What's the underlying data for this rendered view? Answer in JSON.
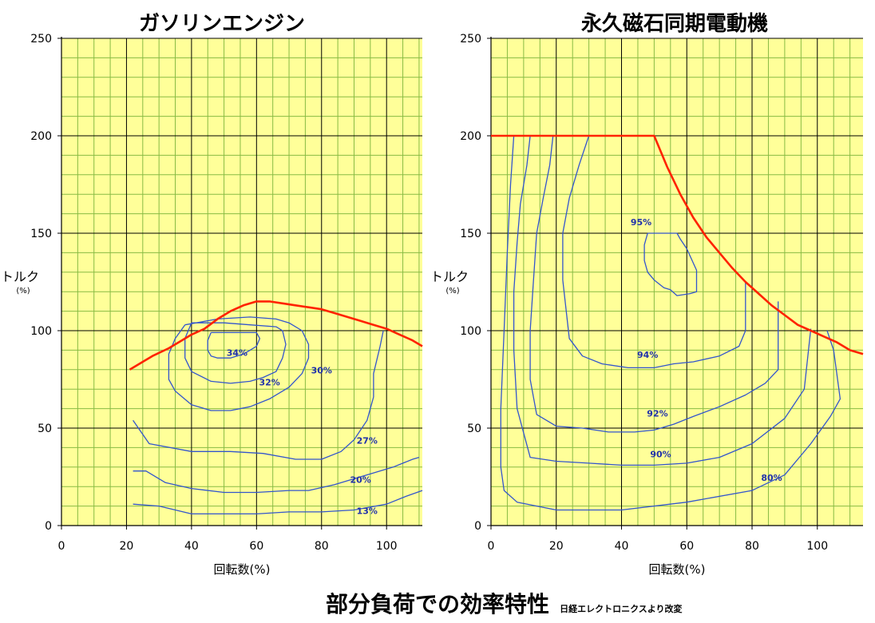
{
  "figure_caption": "部分負荷での効率特性",
  "figure_source": "日経エレクトロニクスより改変",
  "colors": {
    "plot_background": "#FFFF99",
    "minor_grid": "#88BB44",
    "major_grid": "#000000",
    "contour": "#3355CC",
    "contour_label": "#2233AA",
    "limit_curve": "#FF2200"
  },
  "chart_data": [
    {
      "type": "line",
      "title": "ガソリンエンジン",
      "xlabel": "回転数(%)",
      "ylabel": "トルク",
      "ylabel_unit": "(%)",
      "xlim": [
        0,
        111
      ],
      "ylim": [
        0,
        250
      ],
      "xticks": [
        0,
        20,
        40,
        60,
        80,
        100
      ],
      "yticks": [
        0,
        50,
        100,
        150,
        200,
        250
      ],
      "grid": true,
      "max_torque_curve": {
        "x": [
          21,
          25,
          28,
          33,
          37,
          40,
          44,
          48,
          52,
          56,
          60,
          64,
          68,
          72,
          76,
          80,
          84,
          88,
          92,
          96,
          100,
          104,
          108,
          111
        ],
        "y": [
          80,
          84,
          87,
          91,
          95,
          98,
          101,
          106,
          110,
          113,
          115,
          115,
          114,
          113,
          112,
          111,
          109,
          107,
          105,
          103,
          101,
          98,
          95,
          92
        ]
      },
      "contours": [
        {
          "label": "34%",
          "label_at": [
            54,
            87
          ],
          "x": [
            46,
            60,
            61,
            60,
            58,
            56,
            52,
            48,
            46,
            45,
            45,
            46
          ],
          "y": [
            99,
            99,
            96,
            92,
            90,
            88,
            86,
            86,
            87,
            90,
            95,
            99
          ]
        },
        {
          "label": "32%",
          "label_at": [
            64,
            72
          ],
          "x": [
            40,
            50,
            58,
            66,
            68,
            69,
            68,
            66,
            62,
            58,
            52,
            46,
            40,
            38,
            38,
            40
          ],
          "y": [
            104,
            104,
            103,
            102,
            100,
            93,
            86,
            79,
            76,
            74,
            73,
            74,
            79,
            86,
            96,
            104
          ]
        },
        {
          "label": "30%",
          "label_at": [
            80,
            78
          ],
          "x": [
            38,
            48,
            58,
            66,
            70,
            74,
            76,
            76,
            74,
            70,
            64,
            58,
            52,
            46,
            40,
            35,
            33,
            33,
            35,
            38
          ],
          "y": [
            103,
            106,
            107,
            106,
            104,
            100,
            93,
            86,
            78,
            71,
            65,
            61,
            59,
            59,
            62,
            69,
            75,
            88,
            96,
            103
          ]
        },
        {
          "label": "27%",
          "label_at": [
            94,
            42
          ],
          "x": [
            22,
            27,
            40,
            52,
            62,
            72,
            80,
            86,
            90,
            94,
            96,
            96,
            98,
            99
          ],
          "y": [
            54,
            42,
            38,
            38,
            37,
            34,
            34,
            38,
            44,
            54,
            66,
            78,
            92,
            100
          ]
        },
        {
          "label": "20%",
          "label_at": [
            92,
            22
          ],
          "x": [
            22,
            26,
            32,
            40,
            50,
            60,
            70,
            76,
            84,
            90,
            96,
            102,
            108,
            110
          ],
          "y": [
            28,
            28,
            22,
            19,
            17,
            17,
            18,
            18,
            21,
            24,
            27,
            30,
            34,
            35
          ]
        },
        {
          "label": "13%",
          "label_at": [
            94,
            6
          ],
          "x": [
            22,
            30,
            40,
            50,
            60,
            70,
            80,
            90,
            100,
            106,
            111
          ],
          "y": [
            11,
            10,
            6,
            6,
            6,
            7,
            7,
            8,
            11,
            15,
            18
          ]
        }
      ]
    },
    {
      "type": "line",
      "title": "永久磁石同期電動機",
      "xlabel": "回転数(%)",
      "ylabel": "トルク",
      "ylabel_unit": "(%)",
      "xlim": [
        0,
        114
      ],
      "ylim": [
        0,
        250
      ],
      "xticks": [
        0,
        20,
        40,
        60,
        80,
        100
      ],
      "yticks": [
        0,
        50,
        100,
        150,
        200,
        250
      ],
      "grid": true,
      "max_torque_curve": {
        "x": [
          0,
          10,
          20,
          30,
          40,
          50,
          54,
          58,
          62,
          66,
          70,
          74,
          78,
          82,
          86,
          90,
          94,
          98,
          102,
          106,
          110,
          114
        ],
        "y": [
          200,
          200,
          200,
          200,
          200,
          200,
          184,
          170,
          158,
          148,
          140,
          132,
          125,
          119,
          113,
          108,
          103,
          100,
          97,
          94,
          90,
          88
        ]
      },
      "contours": [
        {
          "label": "95%",
          "label_at": [
            46,
            154
          ],
          "x": [
            48,
            52,
            57,
            58,
            60,
            63,
            63,
            61,
            57,
            55,
            53,
            50,
            48,
            47,
            47,
            48
          ],
          "y": [
            150,
            150,
            150,
            147,
            142,
            131,
            120,
            119,
            118,
            121,
            122,
            126,
            130,
            136,
            144,
            150
          ]
        },
        {
          "label": "94%",
          "label_at": [
            48,
            86
          ],
          "x": [
            30,
            27,
            24,
            22,
            22,
            24,
            28,
            34,
            42,
            50,
            56,
            62,
            70,
            76,
            78,
            78
          ],
          "y": [
            200,
            185,
            168,
            150,
            126,
            96,
            87,
            83,
            81,
            81,
            83,
            84,
            87,
            92,
            100,
            125
          ]
        },
        {
          "label": "92%",
          "label_at": [
            51,
            56
          ],
          "x": [
            19,
            18,
            16,
            14,
            13,
            12,
            12,
            14,
            20,
            28,
            36,
            44,
            50,
            56,
            62,
            70,
            78,
            84,
            88,
            88
          ],
          "y": [
            200,
            185,
            168,
            150,
            125,
            100,
            75,
            57,
            51,
            50,
            48,
            48,
            49,
            52,
            56,
            61,
            67,
            73,
            80,
            115
          ]
        },
        {
          "label": "90%",
          "label_at": [
            52,
            35
          ],
          "x": [
            12,
            11,
            9,
            8,
            7,
            7,
            8,
            12,
            20,
            30,
            40,
            50,
            60,
            70,
            80,
            90,
            96,
            98
          ],
          "y": [
            200,
            185,
            165,
            145,
            120,
            90,
            60,
            35,
            33,
            32,
            31,
            31,
            32,
            35,
            42,
            55,
            70,
            101
          ]
        },
        {
          "label": "80%",
          "label_at": [
            86,
            23
          ],
          "x": [
            7,
            6,
            5,
            4,
            3,
            3,
            4,
            8,
            20,
            40,
            60,
            80,
            90,
            98,
            104,
            107,
            105,
            103
          ],
          "y": [
            200,
            175,
            140,
            100,
            60,
            30,
            18,
            12,
            8,
            8,
            12,
            18,
            26,
            42,
            56,
            65,
            90,
            100
          ]
        }
      ]
    }
  ]
}
